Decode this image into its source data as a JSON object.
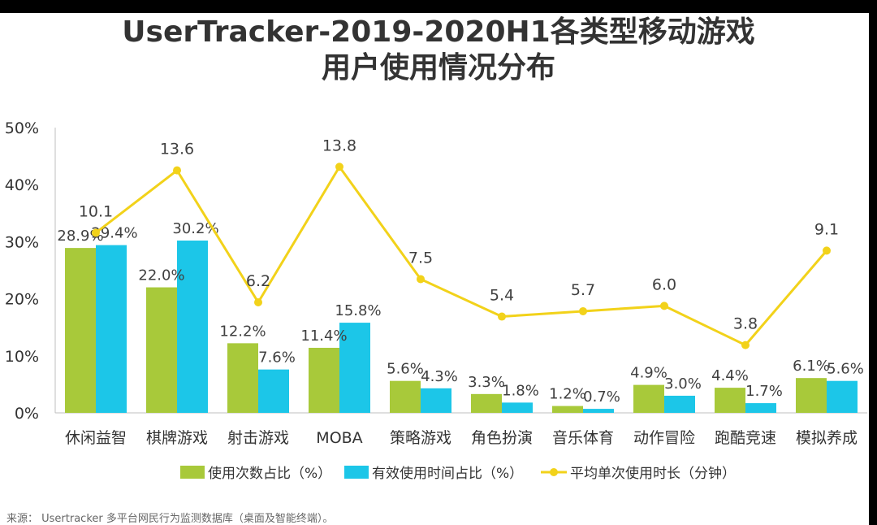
{
  "title_line1": "UserTracker-2019-2020H1各类型移动游戏",
  "title_line2": "用户使用情况分布",
  "source": "来源： Usertracker 多平台网民行为监测数据库（桌面及智能终端）。",
  "chart_data": {
    "type": "bar",
    "categories": [
      "休闲益智",
      "棋牌游戏",
      "射击游戏",
      "MOBA",
      "策略游戏",
      "角色扮演",
      "音乐体育",
      "动作冒险",
      "跑酷竞速",
      "模拟养成"
    ],
    "yticks": [
      "0%",
      "10%",
      "20%",
      "30%",
      "40%",
      "50%"
    ],
    "ylim": [
      0,
      50
    ],
    "series": [
      {
        "name": "使用次数占比（%）",
        "type": "bar",
        "color": "#a8c93a",
        "values": [
          28.9,
          22.0,
          12.2,
          11.4,
          5.6,
          3.3,
          1.2,
          4.9,
          4.4,
          6.1
        ],
        "labels": [
          "28.9%",
          "22.0%",
          "12.2%",
          "11.4%",
          "5.6%",
          "3.3%",
          "1.2%",
          "4.9%",
          "4.4%",
          "6.1%"
        ]
      },
      {
        "name": "有效使用时间占比（%）",
        "type": "bar",
        "color": "#1cc6e8",
        "values": [
          29.4,
          30.2,
          7.6,
          15.8,
          4.3,
          1.8,
          0.7,
          3.0,
          1.7,
          5.6
        ],
        "labels": [
          "29.4%",
          "30.2%",
          "7.6%",
          "15.8%",
          "4.3%",
          "1.8%",
          "0.7%",
          "3.0%",
          "1.7%",
          "5.6%"
        ]
      },
      {
        "name": "平均单次使用时长（分钟）",
        "type": "line",
        "color": "#f2d21a",
        "values": [
          10.1,
          13.6,
          6.2,
          13.8,
          7.5,
          5.4,
          5.7,
          6.0,
          3.8,
          9.1
        ],
        "labels": [
          "10.1",
          "13.6",
          "6.2",
          "13.8",
          "7.5",
          "5.4",
          "5.7",
          "6.0",
          "3.8",
          "9.1"
        ]
      }
    ],
    "grid": false,
    "legend": "bottom"
  }
}
